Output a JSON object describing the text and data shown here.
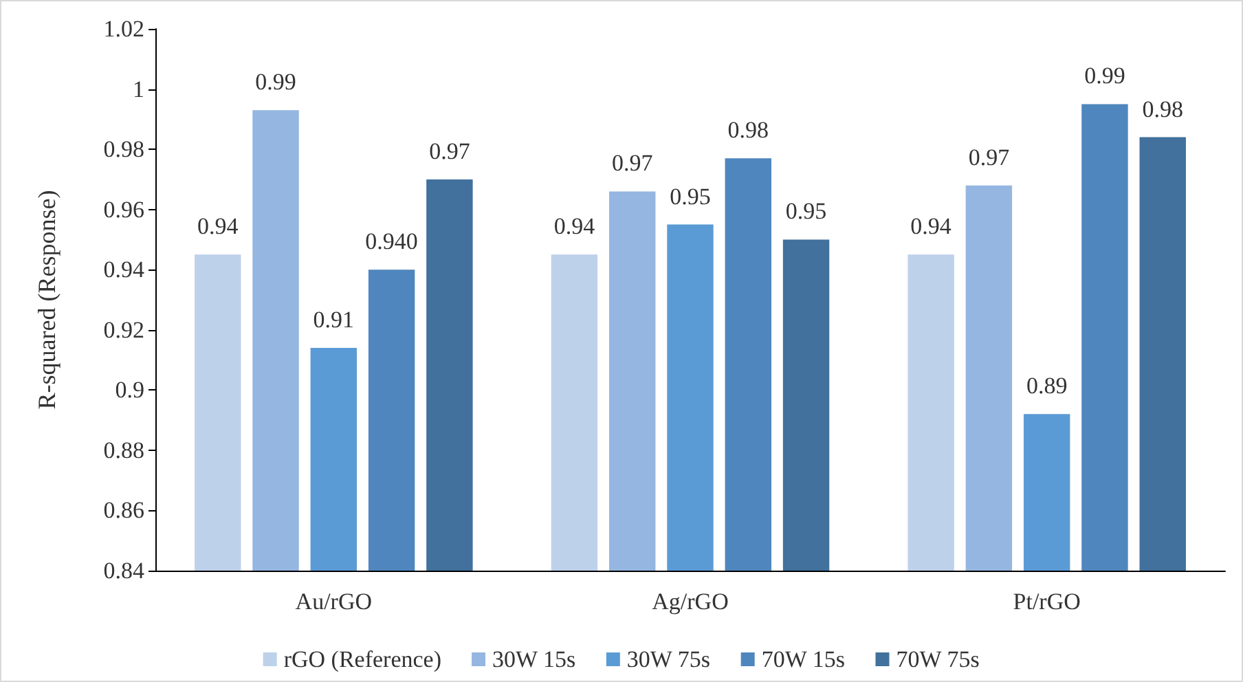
{
  "chart_data": {
    "type": "bar",
    "ylabel": "R-squared (Response)",
    "categories": [
      "Au/rGO",
      "Ag/rGO",
      "Pt/rGO"
    ],
    "series": [
      {
        "name": "rGO (Reference)",
        "color": "#bdd1ea",
        "values": [
          0.945,
          0.945,
          0.945
        ],
        "value_labels": [
          "0.94",
          "0.94",
          "0.94"
        ]
      },
      {
        "name": "30W 15s",
        "color": "#95b6e0",
        "values": [
          0.993,
          0.966,
          0.968
        ],
        "value_labels": [
          "0.99",
          "0.97",
          "0.97"
        ]
      },
      {
        "name": "30W 75s",
        "color": "#5b9bd5",
        "values": [
          0.914,
          0.955,
          0.892
        ],
        "value_labels": [
          "0.91",
          "0.95",
          "0.89"
        ]
      },
      {
        "name": "70W 15s",
        "color": "#4f86bd",
        "values": [
          0.94,
          0.977,
          0.995
        ],
        "value_labels": [
          "0.940",
          "0.98",
          "0.99"
        ]
      },
      {
        "name": "70W 75s",
        "color": "#41719c",
        "values": [
          0.97,
          0.95,
          0.984
        ],
        "value_labels": [
          "0.97",
          "0.95",
          "0.98"
        ]
      }
    ],
    "ylim": [
      0.84,
      1.02
    ],
    "yticks": [
      0.84,
      0.86,
      0.88,
      0.9,
      0.92,
      0.94,
      0.96,
      0.98,
      1,
      1.02
    ],
    "grid": false,
    "legend": "bottom"
  }
}
